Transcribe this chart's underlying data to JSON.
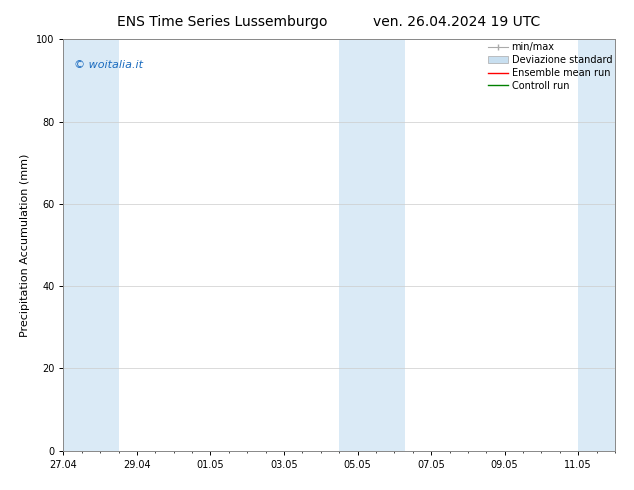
{
  "title_left": "ENS Time Series Lussemburgo",
  "title_right": "ven. 26.04.2024 19 UTC",
  "ylabel": "Precipitation Accumulation (mm)",
  "ylim": [
    0,
    100
  ],
  "yticks": [
    0,
    20,
    40,
    60,
    80,
    100
  ],
  "xtick_labels": [
    "27.04",
    "29.04",
    "01.05",
    "03.05",
    "05.05",
    "07.05",
    "09.05",
    "11.05"
  ],
  "shaded_color": "#daeaf6",
  "bg_color": "#ffffff",
  "grid_color": "#cccccc",
  "watermark_text": "© woitalia.it",
  "watermark_color": "#1a6bbf",
  "legend_labels": [
    "min/max",
    "Deviazione standard",
    "Ensemble mean run",
    "Controll run"
  ],
  "legend_colors": [
    "#aaaaaa",
    "#c8dff0",
    "#ff0000",
    "#008000"
  ],
  "title_fontsize": 10,
  "tick_fontsize": 7,
  "label_fontsize": 8,
  "legend_fontsize": 7
}
